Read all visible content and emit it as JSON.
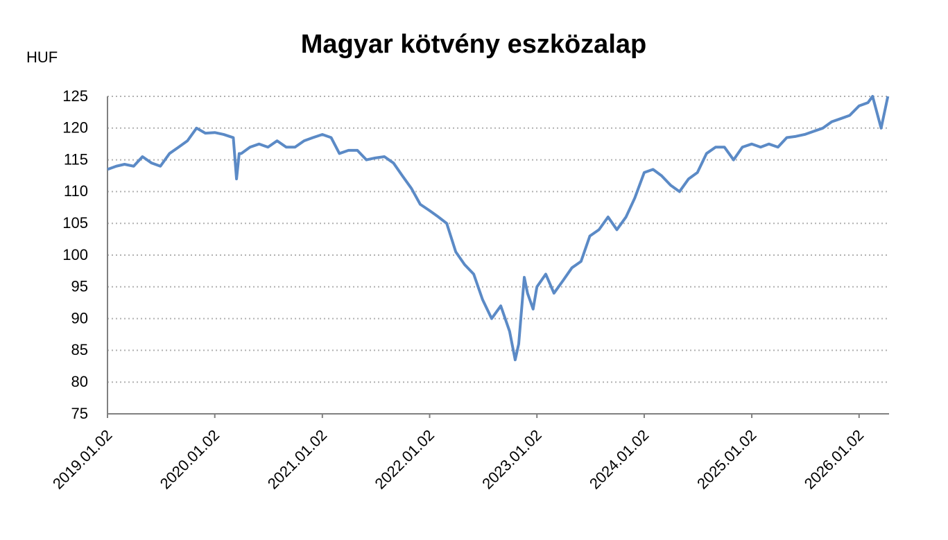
{
  "chart_data": {
    "type": "line",
    "title": "Magyar kötvény eszközalap",
    "y_label": "HUF",
    "x": [
      "2019.01.02",
      "2019.02.01",
      "2019.03.01",
      "2019.04.01",
      "2019.05.01",
      "2019.06.01",
      "2019.07.01",
      "2019.08.01",
      "2019.09.01",
      "2019.10.01",
      "2019.11.01",
      "2019.12.01",
      "2020.01.02",
      "2020.02.01",
      "2020.03.05",
      "2020.03.16",
      "2020.03.25",
      "2020.04.01",
      "2020.05.01",
      "2020.06.01",
      "2020.07.01",
      "2020.08.01",
      "2020.09.01",
      "2020.10.01",
      "2020.11.01",
      "2020.12.01",
      "2021.01.02",
      "2021.02.01",
      "2021.03.01",
      "2021.04.01",
      "2021.05.01",
      "2021.06.01",
      "2021.07.01",
      "2021.08.01",
      "2021.09.01",
      "2021.10.01",
      "2021.11.01",
      "2021.12.01",
      "2022.01.02",
      "2022.02.01",
      "2022.03.01",
      "2022.04.01",
      "2022.05.01",
      "2022.06.01",
      "2022.07.01",
      "2022.08.01",
      "2022.09.01",
      "2022.10.01",
      "2022.10.20",
      "2022.11.01",
      "2022.11.20",
      "2022.12.01",
      "2022.12.20",
      "2023.01.02",
      "2023.02.01",
      "2023.03.01",
      "2023.04.01",
      "2023.05.01",
      "2023.06.01",
      "2023.07.01",
      "2023.08.01",
      "2023.09.01",
      "2023.10.01",
      "2023.11.01",
      "2023.12.01",
      "2024.01.02",
      "2024.02.01",
      "2024.03.01",
      "2024.04.01",
      "2024.05.01",
      "2024.06.01",
      "2024.07.01",
      "2024.08.01",
      "2024.09.01",
      "2024.10.01",
      "2024.11.01",
      "2024.12.01",
      "2025.01.02",
      "2025.02.01",
      "2025.03.01",
      "2025.04.01",
      "2025.05.01",
      "2025.06.01",
      "2025.07.01",
      "2025.08.01",
      "2025.09.01",
      "2025.10.01",
      "2025.11.01",
      "2025.12.01",
      "2026.01.02",
      "2026.02.01",
      "2026.02.17",
      "2026.03.18",
      "2026.04.10"
    ],
    "values": [
      113.5,
      114,
      114.3,
      114,
      115.5,
      114.5,
      114,
      116,
      117,
      118,
      120,
      119.2,
      119.3,
      119,
      118.5,
      112,
      116,
      116,
      117,
      117.5,
      117,
      118,
      117,
      117,
      118,
      118.5,
      119,
      118.5,
      116,
      116.5,
      116.5,
      115,
      115.3,
      115.5,
      114.5,
      112.5,
      110.5,
      108,
      107,
      106,
      105,
      100.5,
      98.5,
      97,
      93,
      90,
      92,
      88,
      83.5,
      86,
      96.5,
      94,
      91.5,
      95,
      97,
      94,
      96,
      98,
      99,
      103,
      104,
      106,
      104,
      106,
      109,
      113,
      113.5,
      112.5,
      111,
      110,
      112,
      113,
      116,
      117,
      117,
      115,
      117,
      117.5,
      117,
      117.5,
      117,
      118.5,
      118.7,
      119,
      119.5,
      120,
      121,
      121.5,
      122,
      123.5,
      124,
      125,
      120,
      125
    ],
    "color": "#5b8ac6",
    "xlim": [
      "2019.01.02",
      "2026.04.14"
    ],
    "xticks": [
      "2019.01.02",
      "2020.01.02",
      "2021.01.02",
      "2022.01.02",
      "2023.01.02",
      "2024.01.02",
      "2025.01.02",
      "2026.01.02"
    ],
    "ylim": [
      75,
      125
    ],
    "yticks": [
      75,
      80,
      85,
      90,
      95,
      100,
      105,
      110,
      115,
      120,
      125
    ],
    "grid": true
  }
}
